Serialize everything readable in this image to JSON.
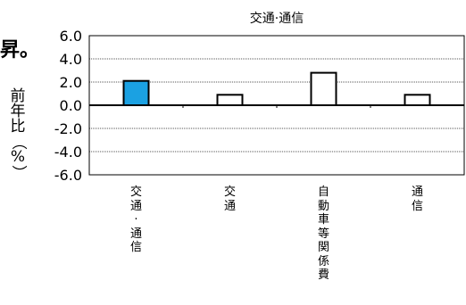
{
  "left_fragment": "昇。",
  "ylabel_vertical": [
    "前",
    "年",
    "比",
    "（",
    "%",
    "）"
  ],
  "chart_data": {
    "type": "bar",
    "title": "交通·通信",
    "ylabel": "前年比（%）",
    "ylim": [
      -6,
      6
    ],
    "yticks": [
      "6.0",
      "4.0",
      "2.0",
      "0.0",
      "-2.0",
      "-4.0",
      "-6.0"
    ],
    "categories": [
      "交通·通信",
      "交通",
      "自動車等関係費",
      "通信"
    ],
    "values": [
      2.1,
      0.9,
      2.8,
      0.9
    ],
    "bar_colors": [
      "#1ba1e2",
      "#ffffff",
      "#ffffff",
      "#ffffff"
    ],
    "grid": true,
    "gridline_style": "dotted"
  }
}
